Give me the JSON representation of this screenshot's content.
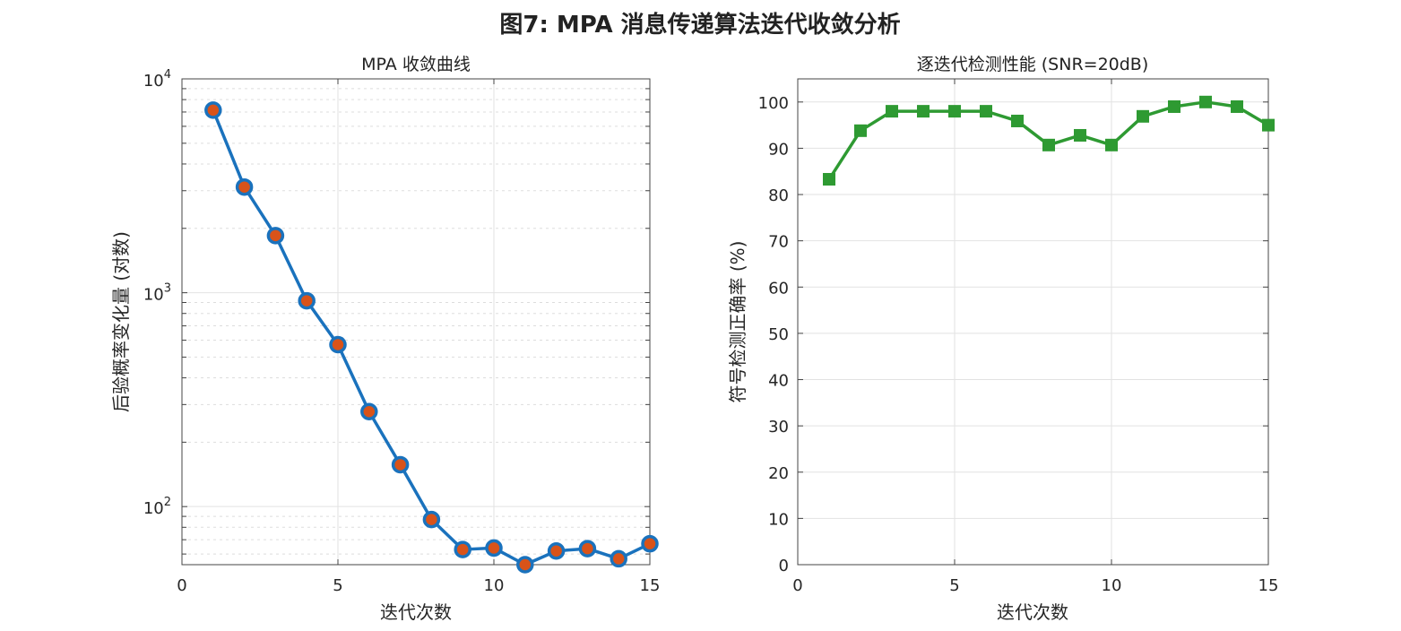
{
  "title": "图7: MPA 消息传递算法迭代收敛分析",
  "chart_data": [
    {
      "type": "line",
      "title": "MPA 收敛曲线",
      "xlabel": "迭代次数",
      "ylabel": "后验概率变化量 (对数)",
      "yscale": "log",
      "xlim": [
        0,
        15
      ],
      "ylim": [
        53.5,
        10000
      ],
      "xticks": [
        0,
        5,
        10,
        15
      ],
      "yticks": [
        100,
        1000,
        10000
      ],
      "ytick_labels": [
        "10^2",
        "10^3",
        "10^4"
      ],
      "grid": true,
      "x": [
        1,
        2,
        3,
        4,
        5,
        6,
        7,
        8,
        9,
        10,
        11,
        12,
        13,
        14,
        15
      ],
      "values": [
        7140,
        3120,
        1850,
        917,
        572,
        278,
        157,
        87,
        63,
        64,
        53.5,
        62,
        63.6,
        57,
        67
      ],
      "line_color": "#1a72bd",
      "marker": "circle",
      "marker_face_color": "#d95319"
    },
    {
      "type": "line",
      "title": "逐迭代检测性能 (SNR=20dB)",
      "xlabel": "迭代次数",
      "ylabel": "符号检测正确率 (%)",
      "xlim": [
        0,
        15
      ],
      "ylim": [
        0,
        105
      ],
      "xticks": [
        0,
        5,
        10,
        15
      ],
      "yticks": [
        0,
        10,
        20,
        30,
        40,
        50,
        60,
        70,
        80,
        90,
        100
      ],
      "grid": true,
      "x": [
        1,
        2,
        3,
        4,
        5,
        6,
        7,
        8,
        9,
        10,
        11,
        12,
        13,
        14,
        15
      ],
      "values": [
        83.3,
        93.8,
        98,
        98,
        98,
        98,
        95.9,
        90.7,
        92.8,
        90.7,
        96.9,
        99,
        100,
        99,
        95
      ],
      "line_color": "#2e9a32",
      "marker": "square"
    }
  ]
}
